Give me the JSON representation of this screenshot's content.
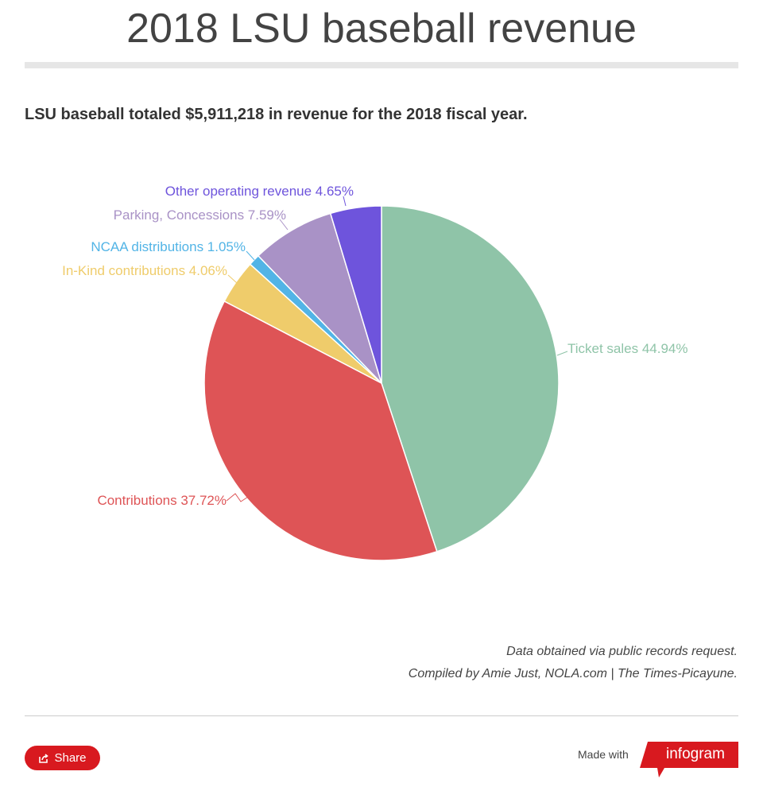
{
  "title": "2018 LSU baseball revenue",
  "subtitle": "LSU baseball totaled $5,911,218 in revenue for the 2018 fiscal year.",
  "chart_data": {
    "type": "pie",
    "start": "top, clockwise",
    "slices": [
      {
        "name": "Ticket sales",
        "value": 44.94,
        "label": "Ticket sales 44.94%",
        "color": "#8fc4a8"
      },
      {
        "name": "Contributions",
        "value": 37.72,
        "label": "Contributions 37.72%",
        "color": "#de5456"
      },
      {
        "name": "In-Kind contributions",
        "value": 4.06,
        "label": "In-Kind contributions 4.06%",
        "color": "#efcc6b"
      },
      {
        "name": "NCAA distributions",
        "value": 1.05,
        "label": "NCAA distributions 1.05%",
        "color": "#52b4e6"
      },
      {
        "name": "Parking, Concessions",
        "value": 7.59,
        "label": "Parking, Concessions 7.59%",
        "color": "#a992c6"
      },
      {
        "name": "Other operating revenue",
        "value": 4.65,
        "label": "Other operating revenue 4.65%",
        "color": "#6e54dc"
      }
    ]
  },
  "notes": [
    "Data obtained via public records request.",
    "Compiled by Amie Just, NOLA.com | The Times-Picayune."
  ],
  "footer": {
    "share_label": "Share",
    "share_icon": "share-icon",
    "made_with": "Made with",
    "brand": "infogram",
    "brand_color": "#d8191f"
  }
}
